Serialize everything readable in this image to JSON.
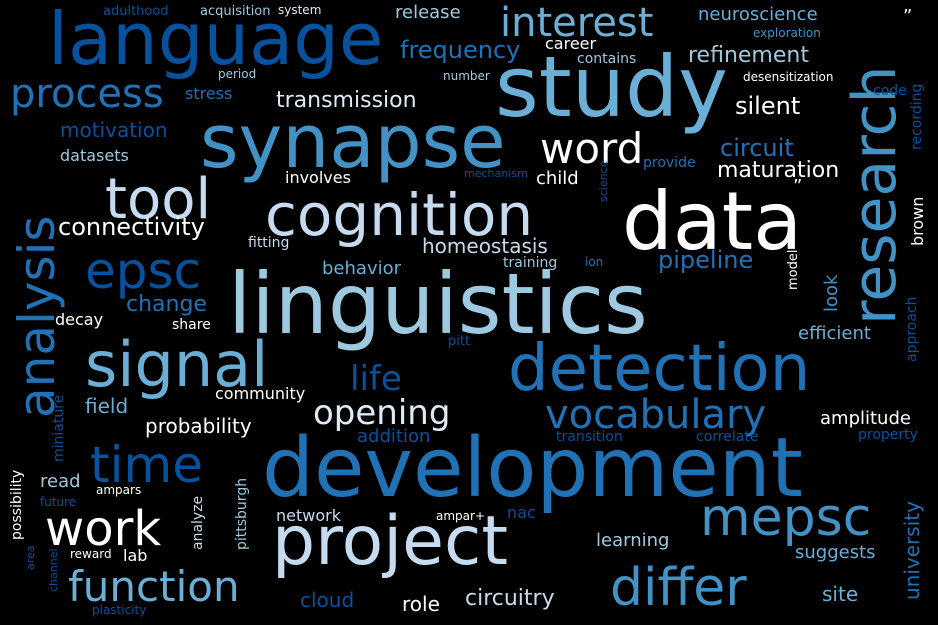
{
  "words": [
    {
      "text": "language",
      "color": "#08519c"
    },
    {
      "text": "study",
      "color": "#6baed6"
    },
    {
      "text": "synapse",
      "color": "#4292c6"
    },
    {
      "text": "interest",
      "color": "#6baed6"
    },
    {
      "text": "research",
      "color": "#4292c6"
    },
    {
      "text": "process",
      "color": "#2171b5"
    },
    {
      "text": "data",
      "color": "#ffffff"
    },
    {
      "text": "cognition",
      "color": "#c6dbef"
    },
    {
      "text": "tool",
      "color": "#c6dbef"
    },
    {
      "text": "word",
      "color": "#ffffff"
    },
    {
      "text": "analysis",
      "color": "#2171b5"
    },
    {
      "text": "linguistics",
      "color": "#9ecae1"
    },
    {
      "text": "epsc",
      "color": "#08519c"
    },
    {
      "text": "signal",
      "color": "#6baed6"
    },
    {
      "text": "detection",
      "color": "#2171b5"
    },
    {
      "text": "development",
      "color": "#2171b5"
    },
    {
      "text": "time",
      "color": "#08519c"
    },
    {
      "text": "project",
      "color": "#c6dbef"
    },
    {
      "text": "work",
      "color": "#ffffff"
    },
    {
      "text": "mepsc",
      "color": "#4292c6"
    },
    {
      "text": "function",
      "color": "#6baed6"
    },
    {
      "text": "differ",
      "color": "#4292c6"
    },
    {
      "text": "vocabulary",
      "color": "#2171b5"
    },
    {
      "text": "opening",
      "color": "#deebf7"
    },
    {
      "text": "life",
      "color": "#08519c"
    },
    {
      "text": "frequency",
      "color": "#2171b5"
    },
    {
      "text": "refinement",
      "color": "#9ecae1"
    },
    {
      "text": "neuroscience",
      "color": "#6baed6"
    },
    {
      "text": "release",
      "color": "#9ecae1"
    },
    {
      "text": "transmission",
      "color": "#deebf7"
    },
    {
      "text": "silent",
      "color": "#ffffff"
    },
    {
      "text": "circuit",
      "color": "#2171b5"
    },
    {
      "text": "maturation",
      "color": "#ffffff"
    },
    {
      "text": "connectivity",
      "color": "#ffffff"
    },
    {
      "text": "homeostasis",
      "color": "#c6dbef"
    },
    {
      "text": "pipeline",
      "color": "#2171b5"
    },
    {
      "text": "motivation",
      "color": "#08519c"
    },
    {
      "text": "datasets",
      "color": "#9ecae1"
    },
    {
      "text": "involves",
      "color": "#ffffff"
    },
    {
      "text": "child",
      "color": "#ffffff"
    },
    {
      "text": "behavior",
      "color": "#6baed6"
    },
    {
      "text": "change",
      "color": "#2171b5"
    },
    {
      "text": "decay",
      "color": "#ffffff"
    },
    {
      "text": "share",
      "color": "#ffffff"
    },
    {
      "text": "probability",
      "color": "#ffffff"
    },
    {
      "text": "field",
      "color": "#6baed6"
    },
    {
      "text": "community",
      "color": "#ffffff"
    },
    {
      "text": "addition",
      "color": "#08519c"
    },
    {
      "text": "transition",
      "color": "#08519c"
    },
    {
      "text": "correlate",
      "color": "#08519c"
    },
    {
      "text": "amplitude",
      "color": "#ffffff"
    },
    {
      "text": "property",
      "color": "#08519c"
    },
    {
      "text": "efficient",
      "color": "#6baed6"
    },
    {
      "text": "look",
      "color": "#4292c6"
    },
    {
      "text": "model",
      "color": "#ffffff"
    },
    {
      "text": "brown",
      "color": "#ffffff"
    },
    {
      "text": "approach",
      "color": "#08519c"
    },
    {
      "text": "recording",
      "color": "#08519c"
    },
    {
      "text": "code",
      "color": "#08519c"
    },
    {
      "text": "desensitization",
      "color": "#ffffff"
    },
    {
      "text": "exploration",
      "color": "#4292c6"
    },
    {
      "text": "career",
      "color": "#ffffff"
    },
    {
      "text": "contains",
      "color": "#9ecae1"
    },
    {
      "text": "number",
      "color": "#9ecae1"
    },
    {
      "text": "period",
      "color": "#9ecae1"
    },
    {
      "text": "stress",
      "color": "#2171b5"
    },
    {
      "text": "adulthood",
      "color": "#08519c"
    },
    {
      "text": "acquisition",
      "color": "#9ecae1"
    },
    {
      "text": "system",
      "color": "#deebf7"
    },
    {
      "text": "mechanism",
      "color": "#08519c"
    },
    {
      "text": "science",
      "color": "#08519c"
    },
    {
      "text": "provide",
      "color": "#2171b5"
    },
    {
      "text": "fitting",
      "color": "#c6dbef"
    },
    {
      "text": "training",
      "color": "#9ecae1"
    },
    {
      "text": "ion",
      "color": "#2171b5"
    },
    {
      "text": "pitt",
      "color": "#08519c"
    },
    {
      "text": "university",
      "color": "#2171b5"
    },
    {
      "text": "suggests",
      "color": "#6baed6"
    },
    {
      "text": "site",
      "color": "#6baed6"
    },
    {
      "text": "learning",
      "color": "#9ecae1"
    },
    {
      "text": "circuitry",
      "color": "#c6dbef"
    },
    {
      "text": "role",
      "color": "#ffffff"
    },
    {
      "text": "cloud",
      "color": "#08519c"
    },
    {
      "text": "network",
      "color": "#c6dbef"
    },
    {
      "text": "ampar+",
      "color": "#ffffff"
    },
    {
      "text": "nac",
      "color": "#08519c"
    },
    {
      "text": "lab",
      "color": "#ffffff"
    },
    {
      "text": "reward",
      "color": "#ffffff"
    },
    {
      "text": "analyze",
      "color": "#c6dbef"
    },
    {
      "text": "pittsburgh",
      "color": "#9ecae1"
    },
    {
      "text": "ampars",
      "color": "#ffffff"
    },
    {
      "text": "read",
      "color": "#9ecae1"
    },
    {
      "text": "future",
      "color": "#08519c"
    },
    {
      "text": "miniature",
      "color": "#08519c"
    },
    {
      "text": "possibility",
      "color": "#ffffff"
    },
    {
      "text": "area",
      "color": "#08519c"
    },
    {
      "text": "channel",
      "color": "#08519c"
    },
    {
      "text": "plasticity",
      "color": "#08519c"
    },
    {
      "text": "”",
      "color": "#ffffff"
    },
    {
      "text": "”",
      "color": "#ffffff"
    }
  ]
}
